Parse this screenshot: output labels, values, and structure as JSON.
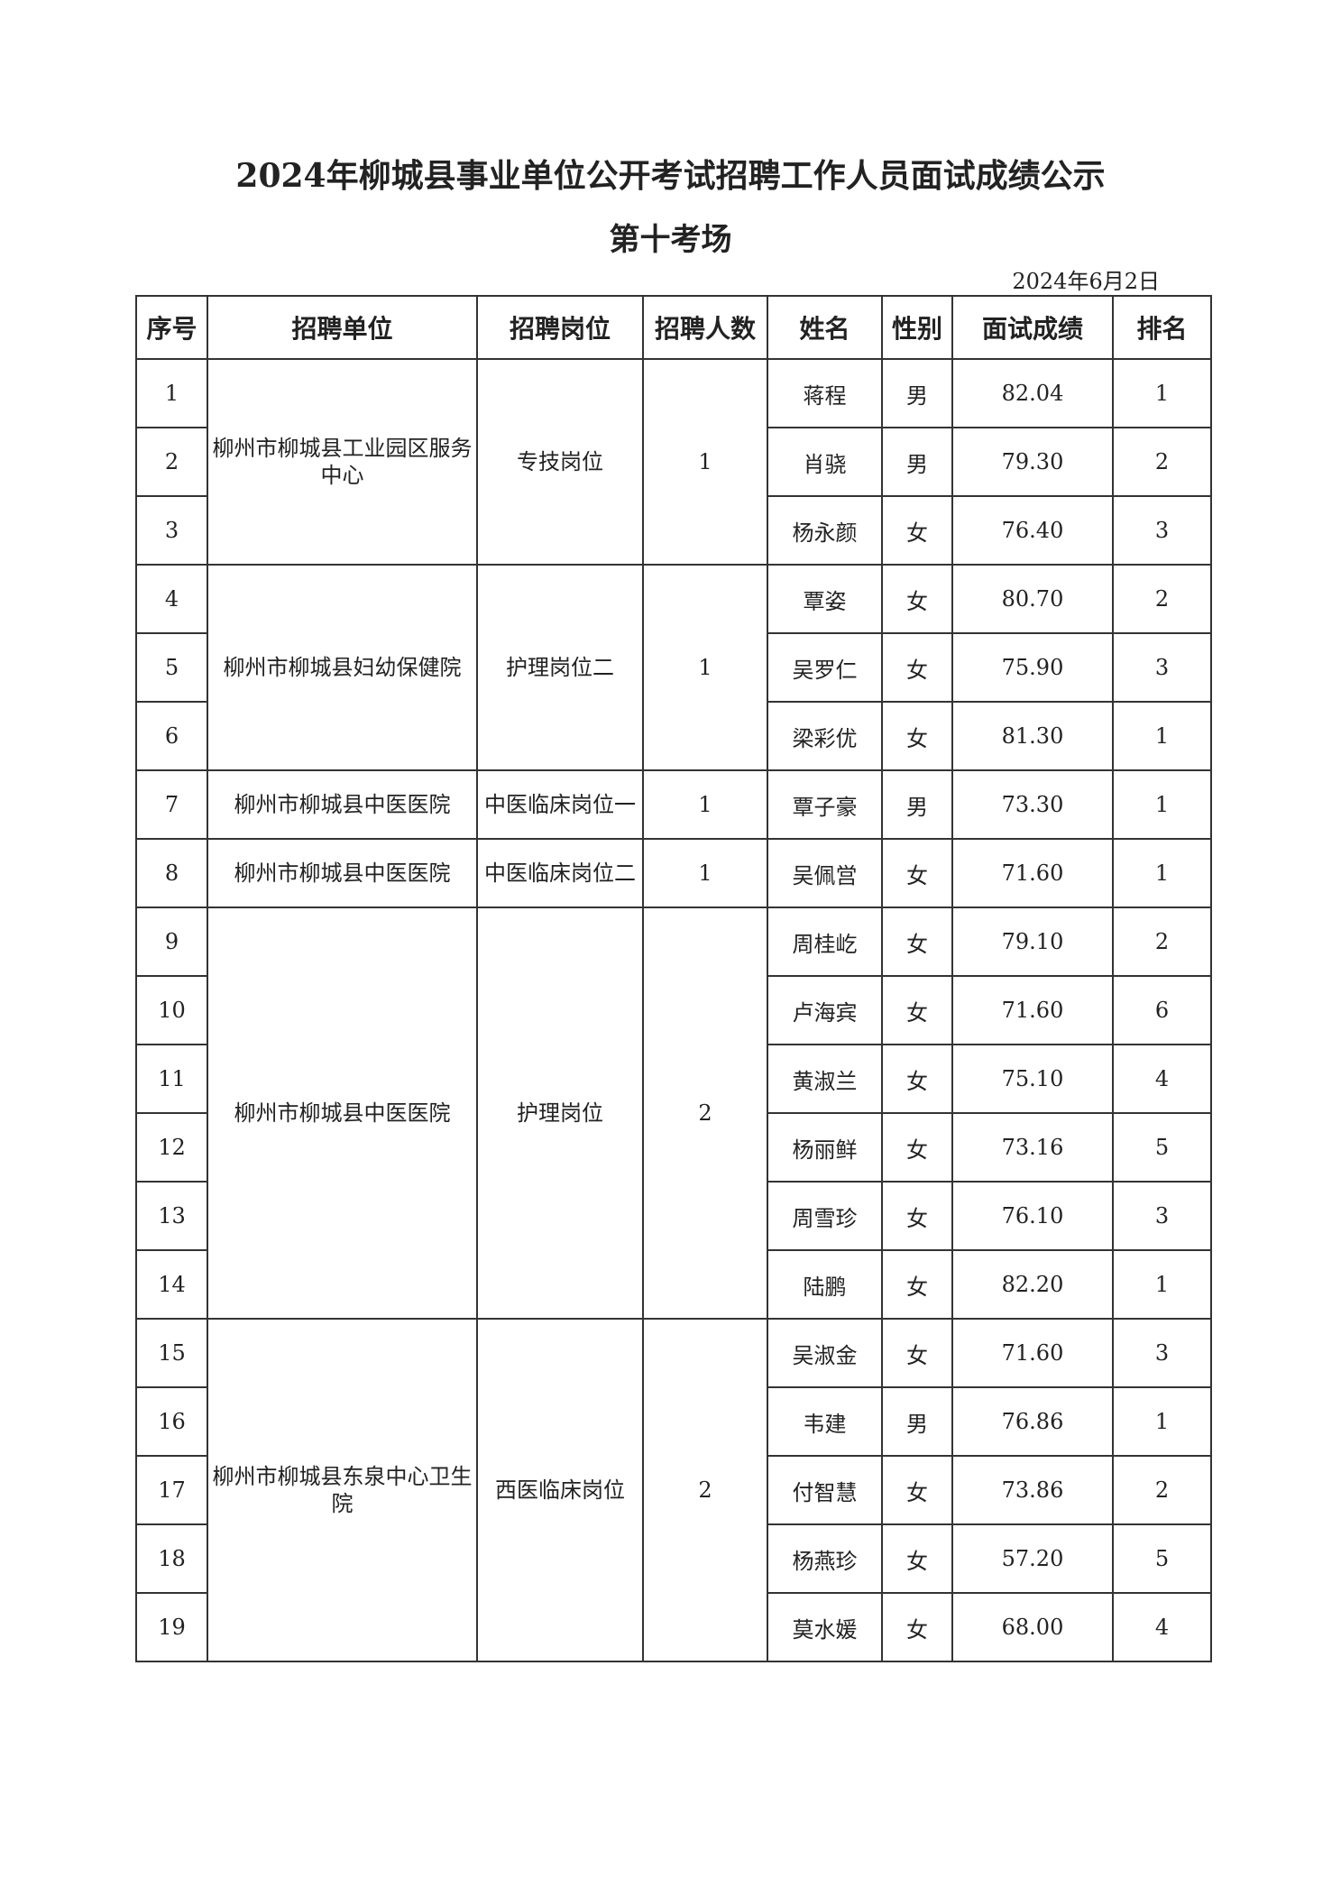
{
  "title": "2024年柳城县事业单位公开考试招聘工作人员面试成绩公示",
  "subtitle": "第十考场",
  "date": "2024年6月2日",
  "headers": [
    "序号",
    "招聘单位",
    "招聘岗位",
    "招聘人数",
    "姓名",
    "性别",
    "面试成绩",
    "排名"
  ],
  "groups": [
    {
      "unit": "柳州市柳城县工业园区服务中心",
      "post": "专技岗位",
      "count": "1",
      "rows": [
        {
          "no": "1",
          "name": "蒋程",
          "gender": "男",
          "score": "82.04",
          "rank": "1"
        },
        {
          "no": "2",
          "name": "肖骁",
          "gender": "男",
          "score": "79.30",
          "rank": "2"
        },
        {
          "no": "3",
          "name": "杨永颜",
          "gender": "女",
          "score": "76.40",
          "rank": "3"
        }
      ]
    },
    {
      "unit": "柳州市柳城县妇幼保健院",
      "post": "护理岗位二",
      "count": "1",
      "rows": [
        {
          "no": "4",
          "name": "覃姿",
          "gender": "女",
          "score": "80.70",
          "rank": "2"
        },
        {
          "no": "5",
          "name": "吴罗仁",
          "gender": "女",
          "score": "75.90",
          "rank": "3"
        },
        {
          "no": "6",
          "name": "梁彩优",
          "gender": "女",
          "score": "81.30",
          "rank": "1"
        }
      ]
    },
    {
      "unit": "柳州市柳城县中医医院",
      "post": "中医临床岗位一",
      "count": "1",
      "rows": [
        {
          "no": "7",
          "name": "覃子豪",
          "gender": "男",
          "score": "73.30",
          "rank": "1"
        }
      ]
    },
    {
      "unit": "柳州市柳城县中医医院",
      "post": "中医临床岗位二",
      "count": "1",
      "rows": [
        {
          "no": "8",
          "name": "吴佩営",
          "gender": "女",
          "score": "71.60",
          "rank": "1"
        }
      ]
    },
    {
      "unit": "柳州市柳城县中医医院",
      "post": "护理岗位",
      "count": "2",
      "rows": [
        {
          "no": "9",
          "name": "周桂屹",
          "gender": "女",
          "score": "79.10",
          "rank": "2"
        },
        {
          "no": "10",
          "name": "卢海宾",
          "gender": "女",
          "score": "71.60",
          "rank": "6"
        },
        {
          "no": "11",
          "name": "黄淑兰",
          "gender": "女",
          "score": "75.10",
          "rank": "4"
        },
        {
          "no": "12",
          "name": "杨丽鲜",
          "gender": "女",
          "score": "73.16",
          "rank": "5"
        },
        {
          "no": "13",
          "name": "周雪珍",
          "gender": "女",
          "score": "76.10",
          "rank": "3"
        },
        {
          "no": "14",
          "name": "陆鹏",
          "gender": "女",
          "score": "82.20",
          "rank": "1"
        }
      ]
    },
    {
      "unit": "柳州市柳城县东泉中心卫生院",
      "post": "西医临床岗位",
      "count": "2",
      "rows": [
        {
          "no": "15",
          "name": "吴淑金",
          "gender": "女",
          "score": "71.60",
          "rank": "3"
        },
        {
          "no": "16",
          "name": "韦建",
          "gender": "男",
          "score": "76.86",
          "rank": "1"
        },
        {
          "no": "17",
          "name": "付智慧",
          "gender": "女",
          "score": "73.86",
          "rank": "2"
        },
        {
          "no": "18",
          "name": "杨燕珍",
          "gender": "女",
          "score": "57.20",
          "rank": "5"
        },
        {
          "no": "19",
          "name": "莫水媛",
          "gender": "女",
          "score": "68.00",
          "rank": "4"
        }
      ]
    }
  ]
}
